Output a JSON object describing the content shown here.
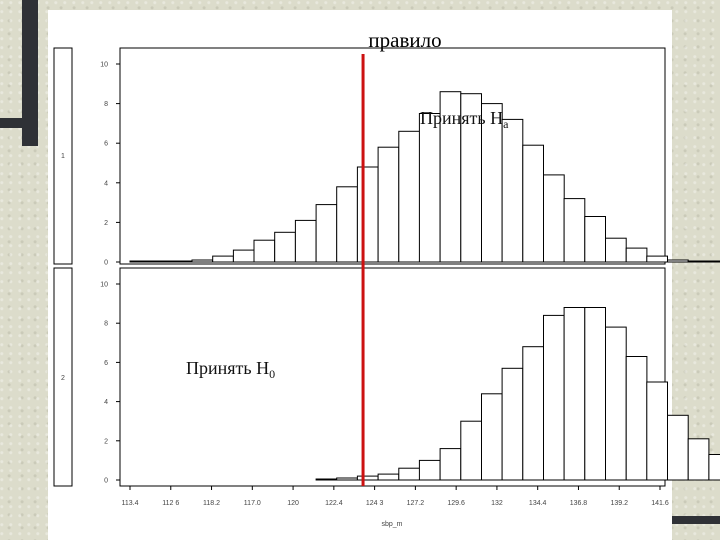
{
  "title": "правило",
  "annotations": {
    "accept_ha": "Принять Н",
    "accept_ha_sub": "a",
    "accept_h0": "Принять Н",
    "accept_h0_sub": "0"
  },
  "colors": {
    "threshold": "#cc1111",
    "bars": "#000000"
  },
  "chart_data": [
    {
      "type": "bar",
      "panel": "1",
      "ylim": [
        0,
        10
      ],
      "yticks": [
        0,
        2,
        4,
        6,
        8,
        10
      ],
      "bin_width": 1.1,
      "x_start": 113.4,
      "values": [
        0.05,
        0.05,
        0.05,
        0.1,
        0.3,
        0.6,
        1.1,
        1.5,
        2.1,
        2.9,
        3.8,
        4.8,
        5.8,
        6.6,
        7.5,
        8.6,
        8.5,
        8.0,
        7.2,
        5.9,
        4.4,
        3.2,
        2.3,
        1.2,
        0.7,
        0.3,
        0.1,
        0.05,
        0.05,
        0.05
      ],
      "xlabel": ""
    },
    {
      "type": "bar",
      "panel": "2",
      "ylim": [
        0,
        10
      ],
      "yticks": [
        0,
        2,
        4,
        6,
        8,
        10
      ],
      "bin_width": 1.1,
      "x_start": 113.4,
      "values": [
        0,
        0,
        0,
        0,
        0,
        0,
        0,
        0,
        0,
        0.05,
        0.1,
        0.2,
        0.3,
        0.6,
        1.0,
        1.6,
        3.0,
        4.4,
        5.7,
        6.8,
        8.4,
        8.8,
        8.8,
        7.8,
        6.3,
        5.0,
        3.3,
        2.1,
        1.3,
        0.7,
        0.3,
        0.1
      ],
      "xlabel": "sbp_m"
    }
  ],
  "x_tick_labels": [
    "113.4",
    "112 6",
    "118.2",
    "117.0",
    "120",
    "122.4",
    "124 3",
    "127.2",
    "129.6",
    "132",
    "134.4",
    "136.8",
    "139.2",
    "141.6"
  ],
  "threshold_x": 125.8
}
